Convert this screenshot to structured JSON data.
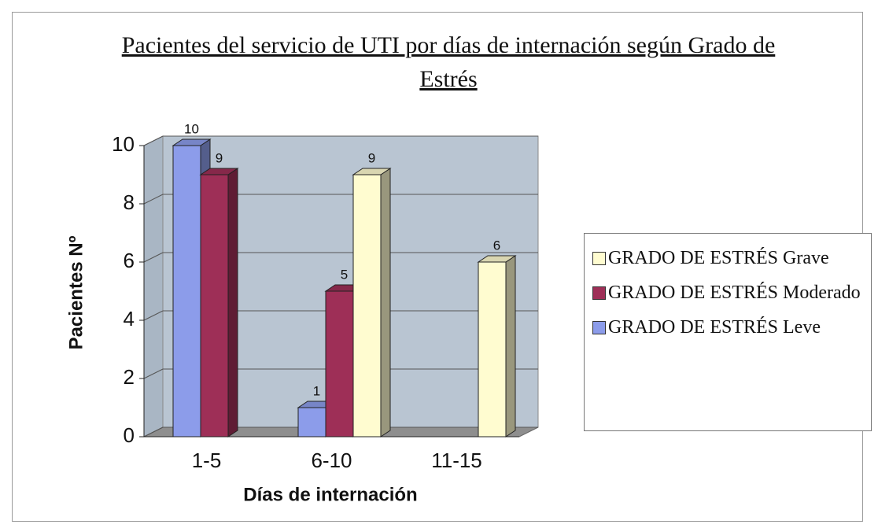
{
  "chart_data": {
    "type": "bar3d",
    "title": "Pacientes del servicio de UTI por días de internación según Grado de Estrés",
    "ylabel": "Pacientes Nº",
    "xlabel": "Días de internación",
    "categories": [
      "1-5",
      "6-10",
      "11-15"
    ],
    "series": [
      {
        "name": "GRADO DE ESTRÉS Leve",
        "color": "#8c9cea",
        "values": [
          10,
          1,
          null
        ]
      },
      {
        "name": "GRADO DE ESTRÉS Moderado",
        "color": "#9e2f57",
        "values": [
          9,
          5,
          null
        ]
      },
      {
        "name": "GRADO DE ESTRÉS Grave",
        "color": "#fffcd0",
        "values": [
          null,
          9,
          6
        ]
      }
    ],
    "ylim": [
      0,
      10
    ],
    "yticks": [
      0,
      2,
      4,
      6,
      8,
      10
    ],
    "grid": true,
    "legend": "right"
  }
}
